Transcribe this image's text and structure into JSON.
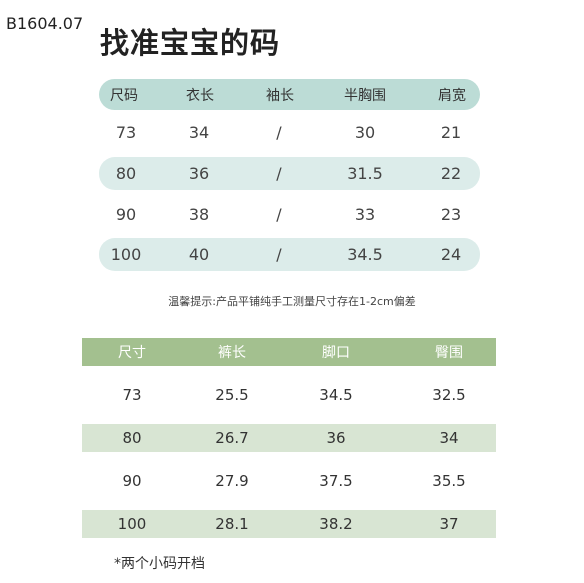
{
  "code": "B1604.07",
  "title": "找准宝宝的码",
  "top_table": {
    "headers": [
      "尺码",
      "衣长",
      "袖长",
      "半胸围",
      "肩宽"
    ],
    "rows": [
      [
        "73",
        "34",
        "/",
        "30",
        "21"
      ],
      [
        "80",
        "36",
        "/",
        "31.5",
        "22"
      ],
      [
        "90",
        "38",
        "/",
        "33",
        "23"
      ],
      [
        "100",
        "40",
        "/",
        "34.5",
        "24"
      ]
    ]
  },
  "note": "温馨提示:产品平铺纯手工测量尺寸存在1-2cm偏差",
  "bottom_table": {
    "headers": [
      "尺寸",
      "裤长",
      "脚口",
      "臀围"
    ],
    "rows": [
      [
        "73",
        "25.5",
        "34.5",
        "32.5"
      ],
      [
        "80",
        "26.7",
        "36",
        "34"
      ],
      [
        "90",
        "27.9",
        "37.5",
        "35.5"
      ],
      [
        "100",
        "28.1",
        "38.2",
        "37"
      ]
    ]
  },
  "footnote": "*两个小码开档"
}
